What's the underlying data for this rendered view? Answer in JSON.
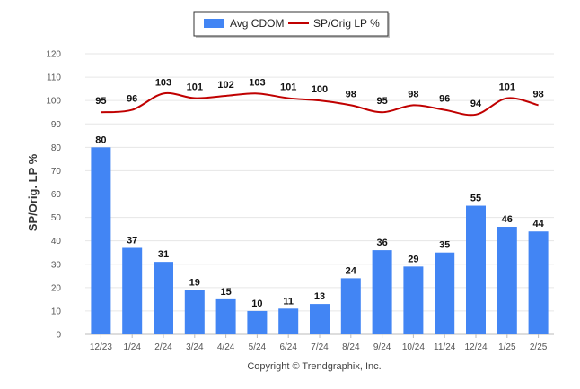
{
  "footer": "Copyright © Trendgraphix, Inc.",
  "colors": {
    "bar": "#4285F4",
    "line": "#C00000",
    "grid": "#e6e6e6"
  },
  "chart_data": {
    "type": "bar",
    "title": "",
    "xlabel": "",
    "ylabel": "SP/Orig. LP %",
    "ylim": [
      0,
      120
    ],
    "yticks": [
      0,
      10,
      20,
      30,
      40,
      50,
      60,
      70,
      80,
      90,
      100,
      110,
      120
    ],
    "grid": true,
    "legend": "top-center",
    "categories": [
      "12/23",
      "1/24",
      "2/24",
      "3/24",
      "4/24",
      "5/24",
      "6/24",
      "7/24",
      "8/24",
      "9/24",
      "10/24",
      "11/24",
      "12/24",
      "1/25",
      "2/25"
    ],
    "series": [
      {
        "name": "Avg CDOM",
        "type": "bar",
        "values": [
          80,
          37,
          31,
          19,
          15,
          10,
          11,
          13,
          24,
          36,
          29,
          35,
          55,
          46,
          44
        ]
      },
      {
        "name": "SP/Orig LP %",
        "type": "line",
        "values": [
          95,
          96,
          103,
          101,
          102,
          103,
          101,
          100,
          98,
          95,
          98,
          96,
          94,
          101,
          98
        ]
      }
    ]
  }
}
